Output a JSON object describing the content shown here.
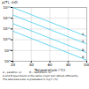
{
  "chart_data": {
    "type": "line",
    "title": "ρ(T), mΩ",
    "xlabel": "Temperature (°C)",
    "log": "y",
    "grid": true,
    "color": "#44ccee",
    "xlim": [
      20,
      100
    ],
    "xticks": [
      20,
      40,
      60,
      80,
      100
    ],
    "ylim": [
      100000000,
      10000000000000
    ],
    "yticks": [
      {
        "value": 100000000,
        "label": "10⁸"
      },
      {
        "value": 1000000000,
        "label": "10⁹"
      },
      {
        "value": 10000000000,
        "label": "10¹⁰"
      },
      {
        "value": 100000000000,
        "label": "10¹¹"
      },
      {
        "value": 1000000000000,
        "label": "10¹²"
      },
      {
        "value": 10000000000000,
        "label": "10¹³"
      }
    ],
    "series": [
      {
        "x": [
          20,
          100
        ],
        "values": [
          10000000000000,
          19952623149.688797
        ]
      },
      {
        "x": [
          20,
          100
        ],
        "values": [
          1995262314968.8796,
          3981071705.534973
        ]
      },
      {
        "x": [
          20,
          100
        ],
        "values": [
          316227766016.8379,
          630957344.4801943
        ]
      },
      {
        "x": [
          20,
          100
        ],
        "values": [
          63095734448.01943,
          125892541.17941673
        ]
      }
    ],
    "annotations": [
      {
        "text": "A",
        "x": 97,
        "y": 35481338923.35763
      },
      {
        "text": "A",
        "x": 97,
        "y": 7079457843.841379
      },
      {
        "text": "B",
        "x": 97,
        "y": 1122018454.3019633
      },
      {
        "text": "B",
        "x": 97,
        "y": 223872113.8568338
      }
    ],
    "caption": [
      "A - parafinic oil          B - naphthenic oil",
      "A and B specimens of the same origin but refined differently",
      "The abscissa scale is graduated in log T (°k)"
    ]
  }
}
